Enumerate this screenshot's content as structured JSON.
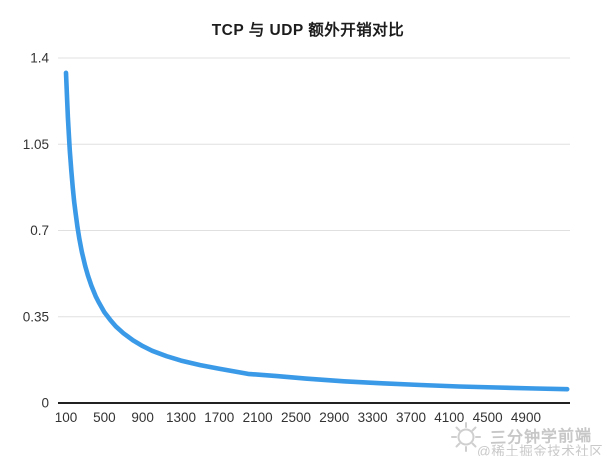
{
  "page": {
    "background": "#ffffff"
  },
  "chart_data": {
    "type": "line",
    "title": "TCP 与 UDP 额外开销对比",
    "x_tick_labels": [
      "100",
      "500",
      "900",
      "1300",
      "1700",
      "2100",
      "2500",
      "2900",
      "3300",
      "3700",
      "4100",
      "4500",
      "4900"
    ],
    "y_tick_labels": [
      "0",
      "0.35",
      "0.7",
      "1.05",
      "1.4"
    ],
    "xlim": [
      100,
      5330
    ],
    "ylim": [
      0,
      1.4
    ],
    "grid": "horizontal-gridlines-only",
    "legend_position": "none",
    "axis_color": "#212121",
    "gridline_color": "#e0e0e0",
    "tick_label_color": "#333333",
    "series": [
      {
        "color": "#3b9ae8",
        "points": [
          [
            100,
            1.34
          ],
          [
            110,
            1.242
          ],
          [
            120,
            1.158
          ],
          [
            130,
            1.086
          ],
          [
            140,
            1.024
          ],
          [
            155,
            0.944
          ],
          [
            170,
            0.877
          ],
          [
            185,
            0.819
          ],
          [
            200,
            0.77
          ],
          [
            220,
            0.713
          ],
          [
            240,
            0.665
          ],
          [
            265,
            0.614
          ],
          [
            300,
            0.556
          ],
          [
            330,
            0.516
          ],
          [
            365,
            0.476
          ],
          [
            410,
            0.433
          ],
          [
            440,
            0.41
          ],
          [
            470,
            0.389
          ],
          [
            500,
            0.369
          ],
          [
            560,
            0.338
          ],
          [
            620,
            0.311
          ],
          [
            700,
            0.283
          ],
          [
            800,
            0.254
          ],
          [
            900,
            0.231
          ],
          [
            1000,
            0.212
          ],
          [
            1150,
            0.19
          ],
          [
            1300,
            0.172
          ],
          [
            1500,
            0.154
          ],
          [
            1700,
            0.139
          ],
          [
            2000,
            0.118
          ],
          [
            2300,
            0.109
          ],
          [
            2600,
            0.099
          ],
          [
            3000,
            0.088
          ],
          [
            3400,
            0.08
          ],
          [
            3800,
            0.073
          ],
          [
            4200,
            0.067
          ],
          [
            4600,
            0.063
          ],
          [
            5000,
            0.059
          ],
          [
            5330,
            0.056
          ]
        ]
      }
    ]
  },
  "watermark": {
    "icon": "sun-doodle-icon",
    "brand": "三分钟学前端",
    "community": "@稀土掘金技术社区",
    "color": "#c9c9c9"
  }
}
